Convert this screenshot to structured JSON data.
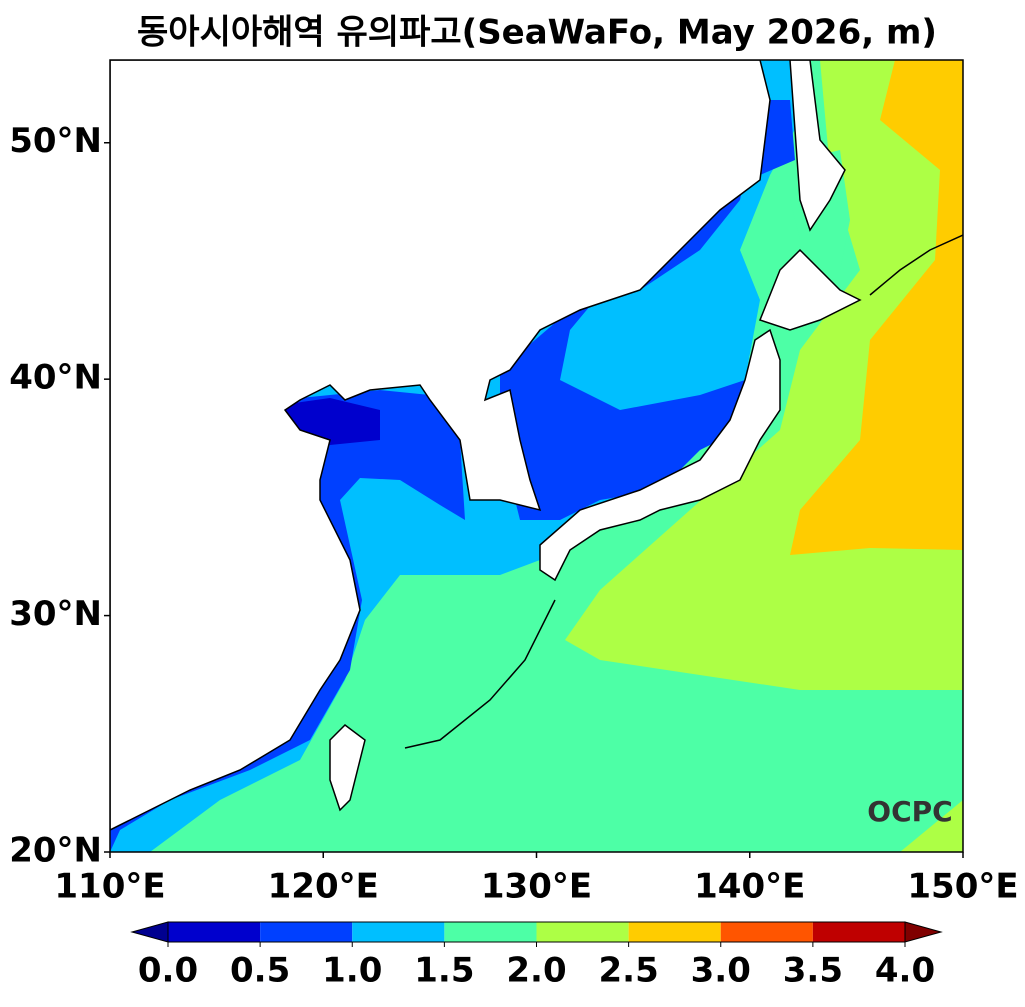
{
  "map": {
    "title": "동아시아해역 유의파고(SeaWaFo, May 2026, m)",
    "logo": "OCPC",
    "xlim": [
      110,
      150
    ],
    "ylim": [
      20,
      53.5
    ],
    "xticks": [
      {
        "value": 110,
        "label": "110°E"
      },
      {
        "value": 120,
        "label": "120°E"
      },
      {
        "value": 130,
        "label": "130°E"
      },
      {
        "value": 140,
        "label": "140°E"
      },
      {
        "value": 150,
        "label": "150°E"
      }
    ],
    "yticks": [
      {
        "value": 20,
        "label": "20°N"
      },
      {
        "value": 30,
        "label": "30°N"
      },
      {
        "value": 40,
        "label": "40°N"
      },
      {
        "value": 50,
        "label": "50°N"
      }
    ],
    "colorbar": {
      "lim": [
        0,
        4
      ],
      "ticks": [
        {
          "value": 0,
          "label": "0.0"
        },
        {
          "value": 0.5,
          "label": "0.5"
        },
        {
          "value": 1,
          "label": "1.0"
        },
        {
          "value": 1.5,
          "label": "1.5"
        },
        {
          "value": 2,
          "label": "2.0"
        },
        {
          "value": 2.5,
          "label": "2.5"
        },
        {
          "value": 3,
          "label": "3.0"
        },
        {
          "value": 3.5,
          "label": "3.5"
        },
        {
          "value": 4,
          "label": "4.0"
        }
      ],
      "colors": [
        "#0000cd",
        "#0040ff",
        "#00bfff",
        "#4dffa6",
        "#adff45",
        "#ffcc00",
        "#ff5500",
        "#bf0000"
      ],
      "under_color": "#000090",
      "over_color": "#800000"
    }
  }
}
